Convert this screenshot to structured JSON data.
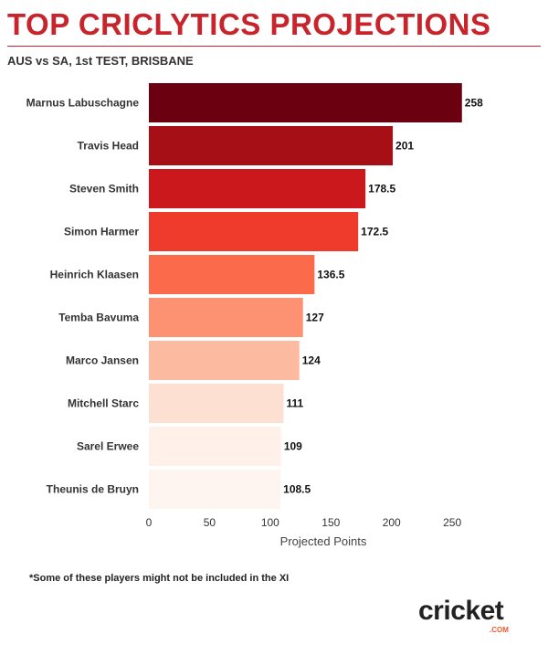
{
  "header": {
    "title": "TOP CRICLYTICS PROJECTIONS",
    "subtitle": "AUS vs SA, 1st TEST, BRISBANE"
  },
  "chart_data": {
    "type": "bar",
    "orientation": "horizontal",
    "categories": [
      "Marnus Labuschagne",
      "Travis Head",
      "Steven Smith",
      "Simon Harmer",
      "Heinrich Klaasen",
      "Temba Bavuma",
      "Marco Jansen",
      "Mitchell Starc",
      "Sarel Erwee",
      "Theunis de Bruyn"
    ],
    "values": [
      258,
      201,
      178.5,
      172.5,
      136.5,
      127,
      124,
      111,
      109,
      108.5
    ],
    "value_labels": [
      "258",
      "201",
      "178.5",
      "172.5",
      "136.5",
      "127",
      "124",
      "111",
      "109",
      "108.5"
    ],
    "colors": [
      "#6b0011",
      "#a50f15",
      "#cb181d",
      "#ef3b2c",
      "#fb6a4a",
      "#fc9272",
      "#fcbba1",
      "#fee0d2",
      "#fff1ea",
      "#fff5f0"
    ],
    "xlabel": "Projected Points",
    "ylabel": "",
    "xlim": [
      0,
      280
    ],
    "xticks": [
      0,
      50,
      100,
      150,
      200,
      250
    ],
    "grid": false
  },
  "footnote": "*Some of these players might not be included in the XI",
  "logo": {
    "word": "cricket",
    "domain": ".COM"
  }
}
